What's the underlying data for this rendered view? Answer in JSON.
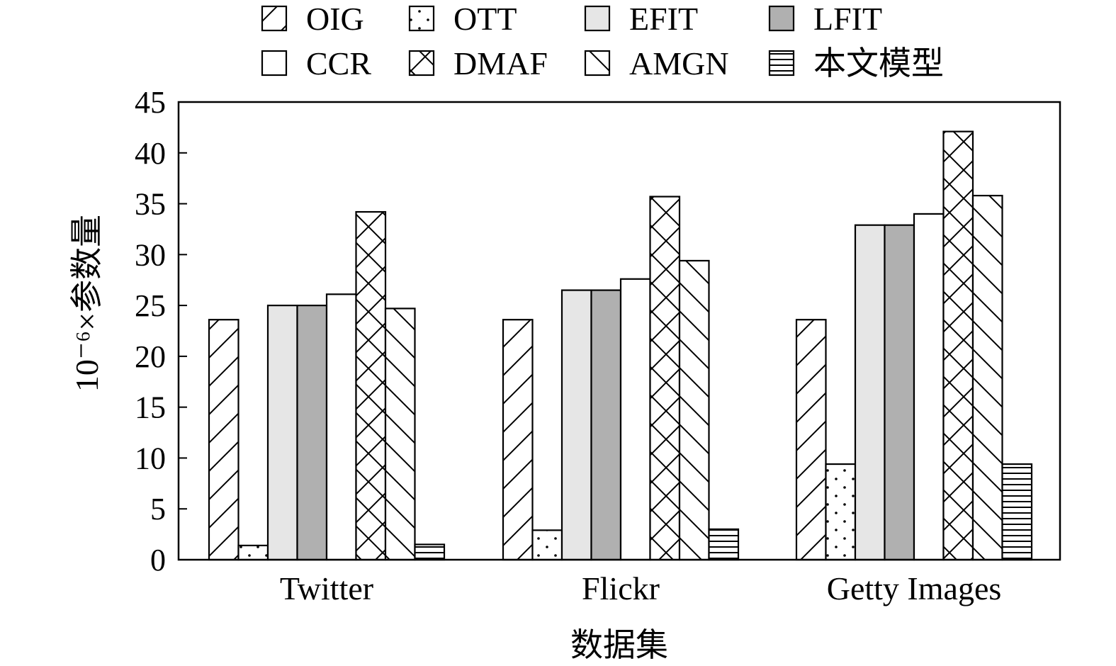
{
  "chart_data": {
    "type": "bar",
    "categories": [
      "Twitter",
      "Flickr",
      "Getty Images"
    ],
    "series": [
      {
        "name": "OIG",
        "pattern": "diagonal-up",
        "values": [
          23.6,
          23.6,
          23.6
        ]
      },
      {
        "name": "OTT",
        "pattern": "dots",
        "values": [
          1.4,
          2.9,
          9.4
        ]
      },
      {
        "name": "EFIT",
        "pattern": "solid-light",
        "color": "#e6e6e6",
        "values": [
          25.0,
          26.5,
          32.9
        ]
      },
      {
        "name": "LFIT",
        "pattern": "solid-dark",
        "color": "#b0b0b0",
        "values": [
          25.0,
          26.5,
          32.9
        ]
      },
      {
        "name": "CCR",
        "pattern": "none",
        "values": [
          26.1,
          27.6,
          34.0
        ]
      },
      {
        "name": "DMAF",
        "pattern": "crosshatch",
        "values": [
          34.2,
          35.7,
          42.1
        ]
      },
      {
        "name": "AMGN",
        "pattern": "diagonal-down",
        "values": [
          24.7,
          29.4,
          35.8
        ]
      },
      {
        "name": "本文模型",
        "pattern": "horizontal",
        "values": [
          1.5,
          3.0,
          9.4
        ]
      }
    ],
    "xlabel": "数据集",
    "ylabel": "10⁻⁶×参数量",
    "ylim": [
      0,
      45
    ],
    "yticks": [
      0,
      5,
      10,
      15,
      20,
      25,
      30,
      35,
      40,
      45
    ],
    "grid": false,
    "legend_position": "top"
  }
}
